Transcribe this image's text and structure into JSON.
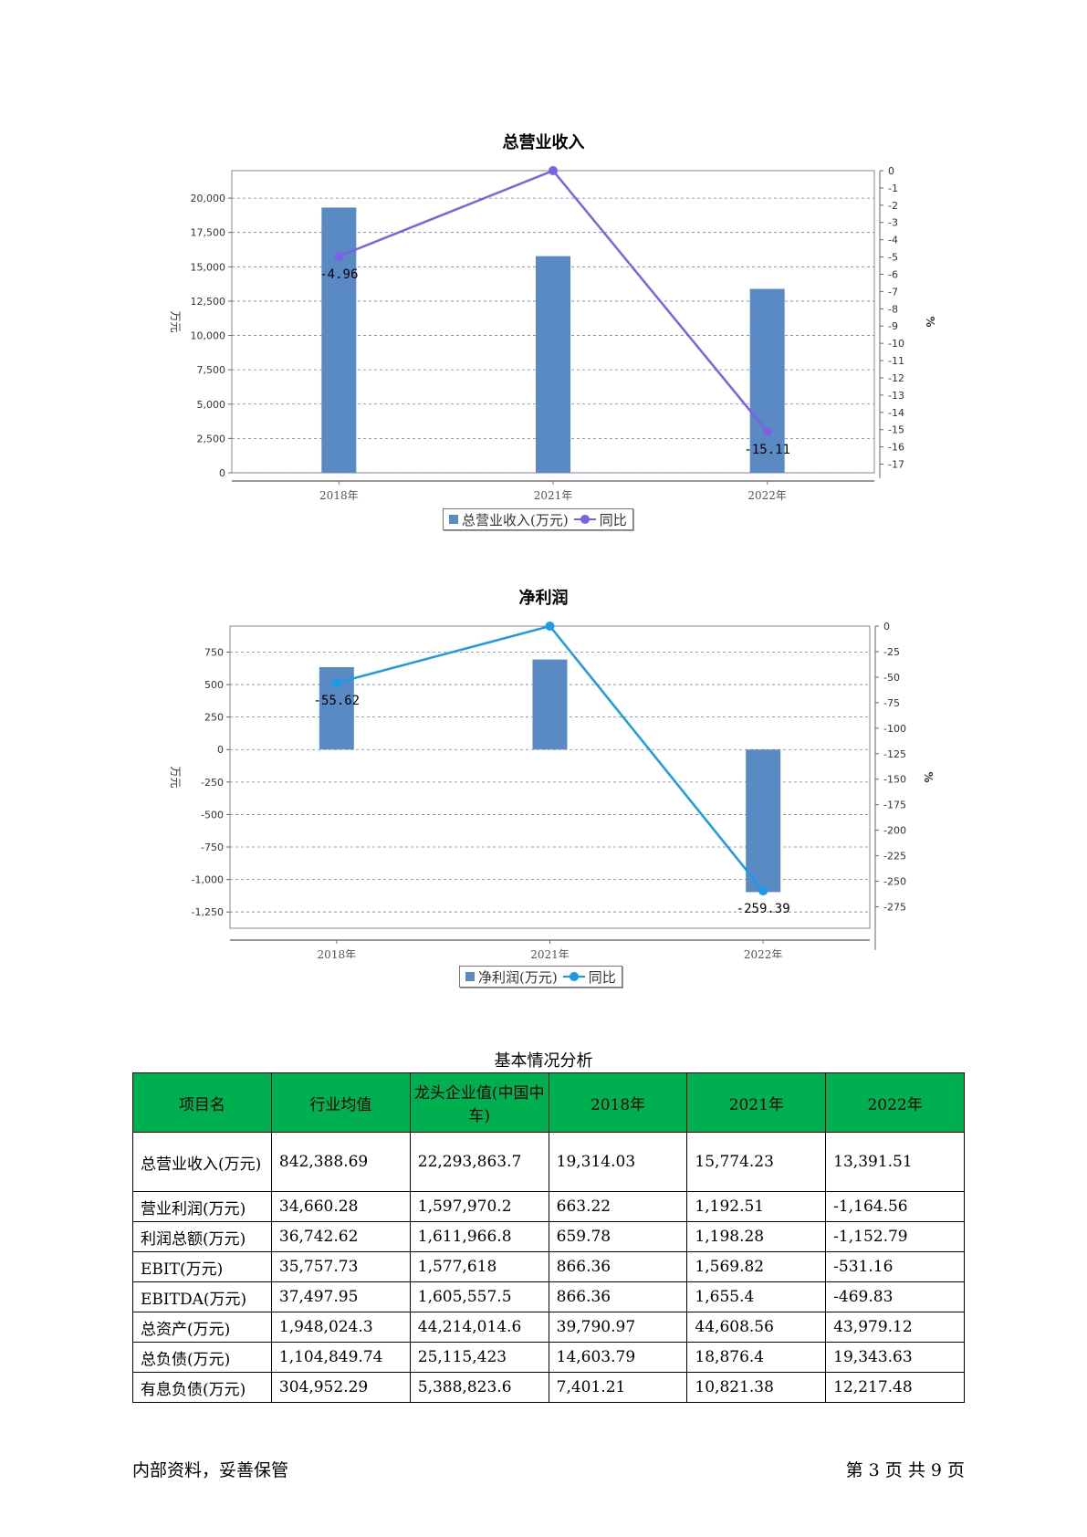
{
  "chart_data": [
    {
      "type": "bar",
      "title": "总营业收入",
      "categories": [
        "2018年",
        "2021年",
        "2022年"
      ],
      "series": [
        {
          "name": "总营业收入(万元)",
          "type": "bar",
          "axis": "left",
          "color": "#5a8ac3",
          "values": [
            19314.03,
            15774.23,
            13391.51
          ]
        },
        {
          "name": "同比",
          "type": "line",
          "axis": "right",
          "color": "#7b61e6",
          "values": [
            -4.96,
            0,
            -15.11
          ]
        }
      ],
      "data_labels": [
        "-4.96",
        "",
        "-15.11"
      ],
      "ylabel": "万元",
      "y2label": "%",
      "ylim": [
        0,
        22000
      ],
      "y_ticks": [
        "0",
        "2,500",
        "5,000",
        "7,500",
        "10,000",
        "12,500",
        "15,000",
        "17,500",
        "20,000"
      ],
      "y_tick_values": [
        0,
        2500,
        5000,
        7500,
        10000,
        12500,
        15000,
        17500,
        20000
      ],
      "y2lim": [
        -17.5,
        0
      ],
      "y2_ticks": [
        "0",
        "-1",
        "-2",
        "-3",
        "-4",
        "-5",
        "-6",
        "-7",
        "-8",
        "-9",
        "-10",
        "-11",
        "-12",
        "-13",
        "-14",
        "-15",
        "-16",
        "-17"
      ],
      "y2_tick_values": [
        0,
        -1,
        -2,
        -3,
        -4,
        -5,
        -6,
        -7,
        -8,
        -9,
        -10,
        -11,
        -12,
        -13,
        -14,
        -15,
        -16,
        -17
      ],
      "grid": true,
      "legend": "bottom"
    },
    {
      "type": "bar",
      "title": "净利润",
      "categories": [
        "2018年",
        "2021年",
        "2022年"
      ],
      "series": [
        {
          "name": "净利润(万元)",
          "type": "bar",
          "axis": "left",
          "color": "#5a8ac3",
          "values": [
            634,
            693,
            -1097
          ]
        },
        {
          "name": "同比",
          "type": "line",
          "axis": "right",
          "color": "#1a9be6",
          "values": [
            -55.62,
            0,
            -259.39
          ]
        }
      ],
      "data_labels": [
        "-55.62",
        "",
        "-259.39"
      ],
      "ylabel": "万元",
      "y2label": "%",
      "ylim": [
        -1375,
        950
      ],
      "y_ticks": [
        "750",
        "500",
        "250",
        "0",
        "-250",
        "-500",
        "-750",
        "-1,000",
        "-1,250"
      ],
      "y_tick_values": [
        750,
        500,
        250,
        0,
        -250,
        -500,
        -750,
        -1000,
        -1250
      ],
      "y2lim": [
        -296,
        0
      ],
      "y2_ticks": [
        "0",
        "-25",
        "-50",
        "-75",
        "-100",
        "-125",
        "-150",
        "-175",
        "-200",
        "-225",
        "-250",
        "-275"
      ],
      "y2_tick_values": [
        0,
        -25,
        -50,
        -75,
        -100,
        -125,
        -150,
        -175,
        -200,
        -225,
        -250,
        -275
      ],
      "grid": true,
      "legend": "bottom"
    }
  ],
  "table": {
    "caption": "基本情况分析",
    "headers": [
      "项目名",
      "行业均值",
      "龙头企业值(中国中车)",
      "2018年",
      "2021年",
      "2022年"
    ],
    "rows": [
      [
        "总营业收入(万元)",
        "842,388.69",
        "22,293,863.7",
        "19,314.03",
        "15,774.23",
        "13,391.51"
      ],
      [
        "营业利润(万元)",
        "34,660.28",
        "1,597,970.2",
        "663.22",
        "1,192.51",
        "-1,164.56"
      ],
      [
        "利润总额(万元)",
        "36,742.62",
        "1,611,966.8",
        "659.78",
        "1,198.28",
        "-1,152.79"
      ],
      [
        "EBIT(万元)",
        "35,757.73",
        "1,577,618",
        "866.36",
        "1,569.82",
        "-531.16"
      ],
      [
        "EBITDA(万元)",
        "37,497.95",
        "1,605,557.5",
        "866.36",
        "1,655.4",
        "-469.83"
      ],
      [
        "总资产(万元)",
        "1,948,024.3",
        "44,214,014.6",
        "39,790.97",
        "44,608.56",
        "43,979.12"
      ],
      [
        "总负债(万元)",
        "1,104,849.74",
        "25,115,423",
        "14,603.79",
        "18,876.4",
        "19,343.63"
      ],
      [
        "有息负债(万元)",
        "304,952.29",
        "5,388,823.6",
        "7,401.21",
        "10,821.38",
        "12,217.48"
      ]
    ]
  },
  "footer": {
    "left": "内部资料，妥善保管",
    "right": "第 3 页  共 9 页"
  }
}
